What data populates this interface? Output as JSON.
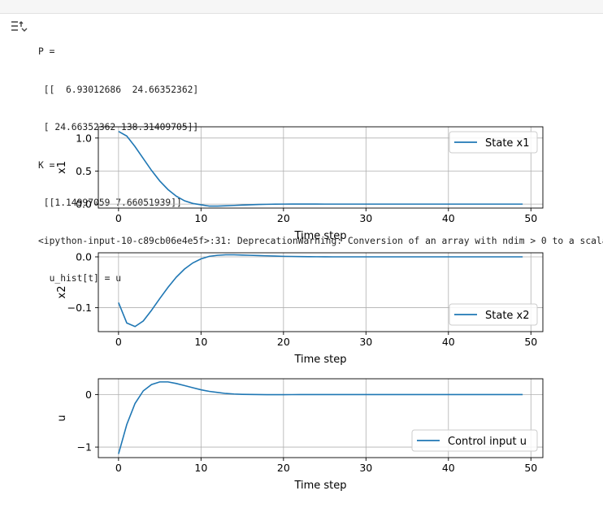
{
  "output": {
    "lines": [
      "P =",
      " [[  6.93012686  24.66352362]",
      " [ 24.66352362 138.31409705]]",
      "K =",
      " [[1.14997059 7.66051939]]",
      "<ipython-input-10-c89cb06e4e5f>:31: DeprecationWarning: Conversion of an array with ndim > 0 to a scalar is deprecated",
      "  u_hist[t] = u"
    ]
  },
  "colors": {
    "series": "#1f77b4",
    "grid": "#b0b0b0",
    "axis": "#000000"
  },
  "icons": {
    "output_toggle": "collapse-output-icon"
  },
  "chart_data": [
    {
      "type": "line",
      "xlabel": "Time step",
      "ylabel": "x1",
      "xlim": [
        -2.45,
        51.45
      ],
      "ylim": [
        -0.06,
        1.17
      ],
      "xticks": [
        0,
        10,
        20,
        30,
        40,
        50
      ],
      "yticks": [
        0.0,
        0.5,
        1.0
      ],
      "ytick_labels": [
        "0.0",
        "0.5",
        "1.0"
      ],
      "grid": true,
      "legend_loc": "upper right",
      "series": [
        {
          "name": "State x1",
          "x": [
            0,
            1,
            2,
            3,
            4,
            5,
            6,
            7,
            8,
            9,
            10,
            11,
            12,
            13,
            14,
            15,
            16,
            17,
            18,
            19,
            20,
            21,
            22,
            23,
            24,
            25,
            26,
            27,
            28,
            29,
            30,
            31,
            32,
            33,
            34,
            35,
            36,
            37,
            38,
            39,
            40,
            41,
            42,
            43,
            44,
            45,
            46,
            47,
            48,
            49
          ],
          "y": [
            1.1,
            1.03,
            0.87,
            0.69,
            0.51,
            0.35,
            0.22,
            0.12,
            0.05,
            0.01,
            -0.01,
            -0.03,
            -0.03,
            -0.025,
            -0.02,
            -0.015,
            -0.01,
            -0.006,
            -0.003,
            -0.001,
            0,
            0.001,
            0.001,
            0.001,
            0.001,
            0,
            0,
            0,
            0,
            0,
            0,
            0,
            0,
            0,
            0,
            0,
            0,
            0,
            0,
            0,
            0,
            0,
            0,
            0,
            0,
            0,
            0,
            0,
            0,
            0
          ]
        }
      ]
    },
    {
      "type": "line",
      "xlabel": "Time step",
      "ylabel": "x2",
      "xlim": [
        -2.45,
        51.45
      ],
      "ylim": [
        -0.147,
        0.008
      ],
      "xticks": [
        0,
        10,
        20,
        30,
        40,
        50
      ],
      "yticks": [
        -0.1,
        0.0
      ],
      "ytick_labels": [
        "−0.1",
        "0.0"
      ],
      "grid": true,
      "legend_loc": "lower right",
      "series": [
        {
          "name": "State x2",
          "x": [
            0,
            1,
            2,
            3,
            4,
            5,
            6,
            7,
            8,
            9,
            10,
            11,
            12,
            13,
            14,
            15,
            16,
            17,
            18,
            19,
            20,
            21,
            22,
            23,
            24,
            25,
            26,
            27,
            28,
            29,
            30,
            31,
            32,
            33,
            34,
            35,
            36,
            37,
            38,
            39,
            40,
            41,
            42,
            43,
            44,
            45,
            46,
            47,
            48,
            49
          ],
          "y": [
            -0.09,
            -0.13,
            -0.137,
            -0.126,
            -0.105,
            -0.082,
            -0.06,
            -0.04,
            -0.024,
            -0.012,
            -0.004,
            0.001,
            0.003,
            0.004,
            0.004,
            0.0035,
            0.003,
            0.0025,
            0.002,
            0.0015,
            0.001,
            0.0008,
            0.0005,
            0.0003,
            0.0002,
            0.0001,
            0,
            0,
            0,
            0,
            0,
            0,
            0,
            0,
            0,
            0,
            0,
            0,
            0,
            0,
            0,
            0,
            0,
            0,
            0,
            0,
            0,
            0,
            0,
            0
          ]
        }
      ]
    },
    {
      "type": "line",
      "xlabel": "Time step",
      "ylabel": "u",
      "xlim": [
        -2.45,
        51.45
      ],
      "ylim": [
        -1.2,
        0.3
      ],
      "xticks": [
        0,
        10,
        20,
        30,
        40,
        50
      ],
      "yticks": [
        -1,
        0
      ],
      "ytick_labels": [
        "−1",
        "0"
      ],
      "grid": true,
      "legend_loc": "lower right",
      "series": [
        {
          "name": "Control input u",
          "x": [
            0,
            1,
            2,
            3,
            4,
            5,
            6,
            7,
            8,
            9,
            10,
            11,
            12,
            13,
            14,
            15,
            16,
            17,
            18,
            19,
            20,
            21,
            22,
            23,
            24,
            25,
            26,
            27,
            28,
            29,
            30,
            31,
            32,
            33,
            34,
            35,
            36,
            37,
            38,
            39,
            40,
            41,
            42,
            43,
            44,
            45,
            46,
            47,
            48,
            49
          ],
          "y": [
            -1.13,
            -0.57,
            -0.17,
            0.07,
            0.19,
            0.24,
            0.24,
            0.21,
            0.17,
            0.13,
            0.09,
            0.06,
            0.04,
            0.02,
            0.01,
            0.004,
            0.001,
            -0.001,
            -0.002,
            -0.002,
            -0.002,
            -0.0015,
            -0.001,
            -0.001,
            -0.0005,
            0,
            0,
            0,
            0,
            0,
            0,
            0,
            0,
            0,
            0,
            0,
            0,
            0,
            0,
            0,
            0,
            0,
            0,
            0,
            0,
            0,
            0,
            0,
            0,
            0
          ]
        }
      ]
    }
  ]
}
